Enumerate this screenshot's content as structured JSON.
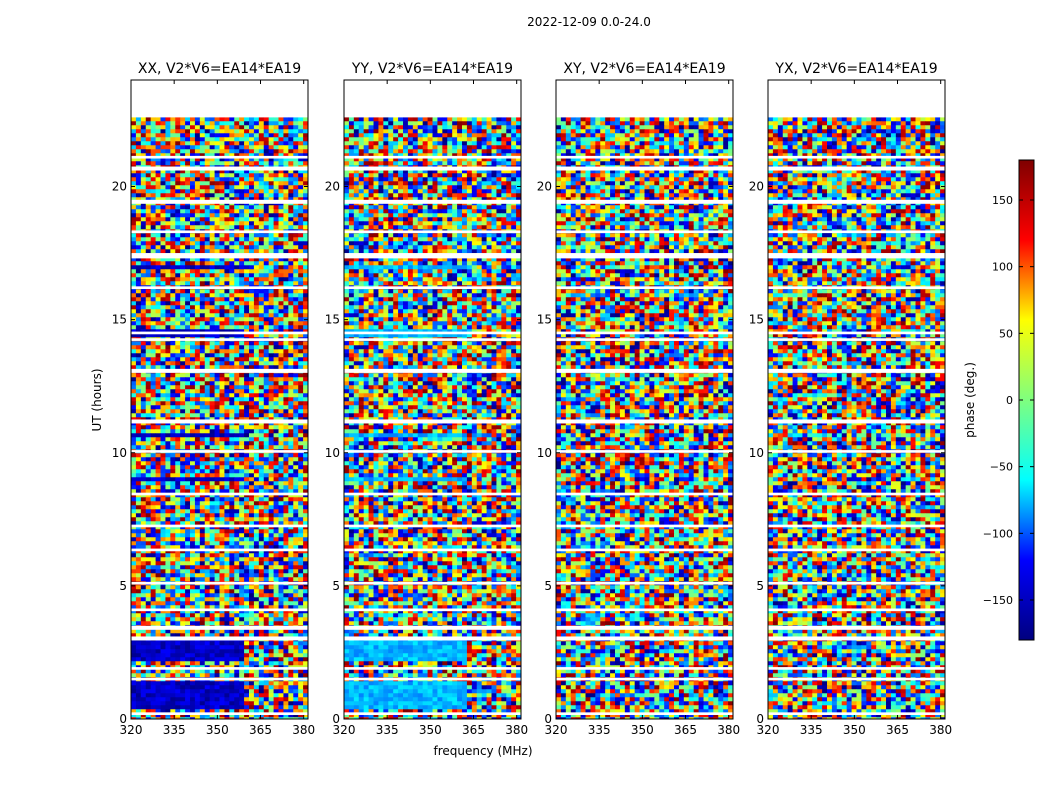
{
  "figure": {
    "suptitle": "2022-12-09 0.0-24.0",
    "xlabel": "frequency (MHz)",
    "ylabel": "UT (hours)"
  },
  "chart_data": {
    "type": "heatmap",
    "title": "2022-12-09 0.0-24.0",
    "xlabel": "frequency (MHz)",
    "ylabel": "UT (hours)",
    "xlim": [
      320,
      381.5
    ],
    "ylim": [
      0,
      24
    ],
    "xticks": [
      320,
      335,
      350,
      365,
      380
    ],
    "yticks": [
      0,
      5,
      10,
      15,
      20
    ],
    "panels": [
      {
        "title": "XX, V2*V6=EA14*EA19",
        "bias_start_mhz": 360,
        "bias_phase_deg": -155
      },
      {
        "title": "YY, V2*V6=EA14*EA19",
        "bias_start_mhz": 362,
        "bias_phase_deg": -70
      },
      {
        "title": "XY, V2*V6=EA14*EA19",
        "bias_start_mhz": 0,
        "bias_phase_deg": null
      },
      {
        "title": "YX, V2*V6=EA14*EA19",
        "bias_start_mhz": 0,
        "bias_phase_deg": null
      }
    ],
    "data_gaps_ut": [
      [
        22.6,
        24.0
      ],
      [
        21.05,
        21.15
      ],
      [
        20.6,
        20.75
      ],
      [
        19.35,
        19.5
      ],
      [
        18.25,
        18.35
      ],
      [
        17.3,
        17.5
      ],
      [
        16.15,
        16.25
      ],
      [
        14.45,
        14.55
      ],
      [
        14.2,
        14.3
      ],
      [
        13.0,
        13.15
      ],
      [
        11.1,
        11.25
      ],
      [
        10.0,
        10.1
      ],
      [
        8.4,
        8.5
      ],
      [
        7.2,
        7.3
      ],
      [
        6.3,
        6.4
      ],
      [
        5.05,
        5.15
      ],
      [
        4.05,
        4.15
      ],
      [
        3.35,
        3.5
      ],
      [
        2.95,
        3.1
      ],
      [
        1.85,
        1.95
      ],
      [
        1.45,
        1.55
      ],
      [
        0.15,
        0.25
      ]
    ],
    "colorbar": {
      "label": "phase (deg.)",
      "range": [
        -180,
        180
      ],
      "ticks": [
        150,
        100,
        50,
        0,
        -50,
        -100,
        -150
      ],
      "tick_labels": [
        "150",
        "100",
        "50",
        "0",
        "−50",
        "−100",
        "−150"
      ],
      "colors": [
        "#00007f",
        "#0000ff",
        "#00ffff",
        "#7fff7f",
        "#ffff00",
        "#ff0000",
        "#7f0000"
      ]
    }
  }
}
